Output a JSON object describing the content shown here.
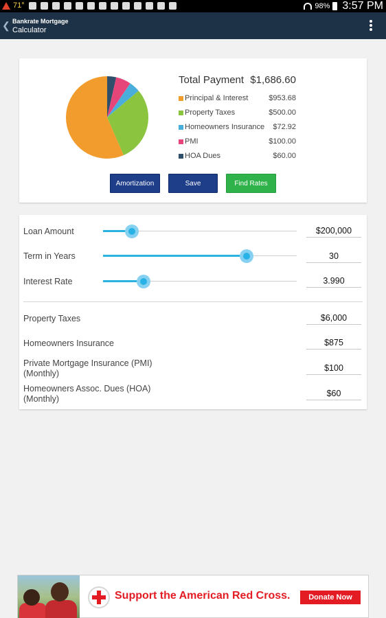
{
  "status_bar": {
    "temperature": "71°",
    "battery": "98%",
    "time": "3:57 PM"
  },
  "app_bar": {
    "title_line1": "Bankrate Mortgage",
    "title_line2": "Calculator"
  },
  "summary": {
    "total_label": "Total Payment",
    "total_value": "$1,686.60",
    "breakdown": [
      {
        "label": "Principal & Interest",
        "amount": "$953.68",
        "value": 953.68,
        "color": "#f39c2e"
      },
      {
        "label": "Property Taxes",
        "amount": "$500.00",
        "value": 500.0,
        "color": "#8bc43f"
      },
      {
        "label": "Homeowners Insurance",
        "amount": "$72.92",
        "value": 72.92,
        "color": "#4aaedc"
      },
      {
        "label": "PMI",
        "amount": "$100.00",
        "value": 100.0,
        "color": "#e6457a"
      },
      {
        "label": "HOA Dues",
        "amount": "$60.00",
        "value": 60.0,
        "color": "#2f4f6a"
      }
    ],
    "buttons": {
      "amortization": "Amortization",
      "save": "Save",
      "find_rates": "Find Rates"
    }
  },
  "inputs": {
    "loan_amount": {
      "label": "Loan Amount",
      "value": "$200,000",
      "slider_level": 0.15
    },
    "term": {
      "label": "Term in Years",
      "value": "30",
      "slider_level": 0.74
    },
    "interest_rate": {
      "label": "Interest Rate",
      "value": "3.990",
      "slider_level": 0.21
    },
    "property_taxes": {
      "label": "Property Taxes",
      "value": "$6,000"
    },
    "homeowners_insurance": {
      "label": "Homeowners Insurance",
      "value": "$875"
    },
    "pmi": {
      "label_line1": "Private Mortgage Insurance (PMI)",
      "label_line2": "(Monthly)",
      "value": "$100"
    },
    "hoa": {
      "label_line1": "Homeowners Assoc. Dues (HOA)",
      "label_line2": "(Monthly)",
      "value": "$60"
    }
  },
  "ad": {
    "text": "Support the American Red Cross.",
    "button": "Donate Now"
  }
}
